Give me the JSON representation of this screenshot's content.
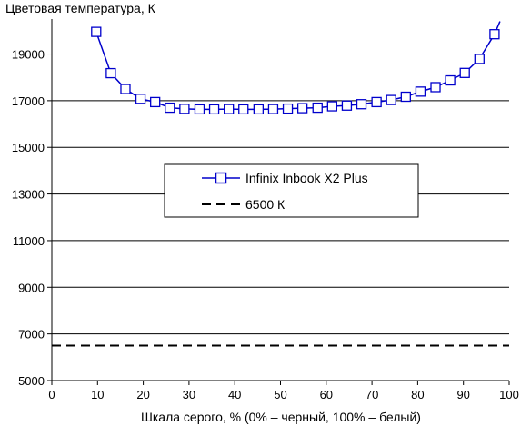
{
  "chart_data": {
    "type": "line",
    "title": "",
    "ylabel": "Цветовая температура, К",
    "xlabel": "Шкала серого, % (0% – черный, 100% – белый)",
    "xlim": [
      0,
      100
    ],
    "ylim": [
      5000,
      20500
    ],
    "xticks": [
      0,
      10,
      20,
      30,
      40,
      50,
      60,
      70,
      80,
      90,
      100
    ],
    "yticks": [
      5000,
      7000,
      9000,
      11000,
      13000,
      15000,
      17000,
      19000
    ],
    "grid": "horizontal",
    "legend_position": "center",
    "series": [
      {
        "name": "Infinix Inbook X2 Plus",
        "color": "#0000cc",
        "marker": "open-square",
        "style": "solid",
        "points": [
          [
            9.7,
            19950
          ],
          [
            12.9,
            18180
          ],
          [
            16.1,
            17500
          ],
          [
            19.4,
            17080
          ],
          [
            22.6,
            16940
          ],
          [
            25.8,
            16700
          ],
          [
            29.0,
            16650
          ],
          [
            32.3,
            16630
          ],
          [
            35.5,
            16630
          ],
          [
            38.7,
            16640
          ],
          [
            41.9,
            16630
          ],
          [
            45.2,
            16630
          ],
          [
            48.4,
            16640
          ],
          [
            51.6,
            16660
          ],
          [
            54.8,
            16680
          ],
          [
            58.1,
            16700
          ],
          [
            61.3,
            16760
          ],
          [
            64.5,
            16790
          ],
          [
            67.7,
            16850
          ],
          [
            71.0,
            16940
          ],
          [
            74.2,
            17030
          ],
          [
            77.4,
            17170
          ],
          [
            80.6,
            17390
          ],
          [
            83.9,
            17580
          ],
          [
            87.1,
            17870
          ],
          [
            90.3,
            18190
          ],
          [
            93.5,
            18790
          ],
          [
            96.8,
            19850
          ],
          [
            98.0,
            20400
          ]
        ]
      },
      {
        "name": "6500 К",
        "color": "#000000",
        "style": "dashed",
        "points": [
          [
            0,
            6500
          ],
          [
            100,
            6500
          ]
        ]
      }
    ]
  }
}
